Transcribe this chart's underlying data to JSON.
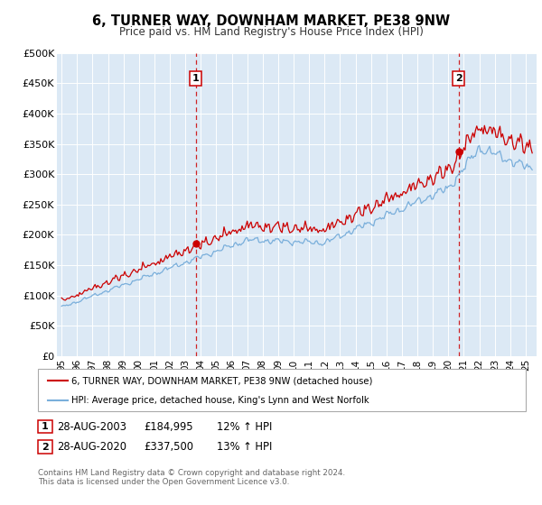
{
  "title": "6, TURNER WAY, DOWNHAM MARKET, PE38 9NW",
  "subtitle": "Price paid vs. HM Land Registry's House Price Index (HPI)",
  "ylim": [
    0,
    500000
  ],
  "yticks": [
    0,
    50000,
    100000,
    150000,
    200000,
    250000,
    300000,
    350000,
    400000,
    450000,
    500000
  ],
  "ytick_labels": [
    "£0",
    "£50K",
    "£100K",
    "£150K",
    "£200K",
    "£250K",
    "£300K",
    "£350K",
    "£400K",
    "£450K",
    "£500K"
  ],
  "background_color": "#dce9f5",
  "red_line_color": "#cc0000",
  "blue_line_color": "#7aafdb",
  "sale1_x": 2003.67,
  "sale1_price": 184995,
  "sale2_x": 2020.67,
  "sale2_price": 337500,
  "legend_line1": "6, TURNER WAY, DOWNHAM MARKET, PE38 9NW (detached house)",
  "legend_line2": "HPI: Average price, detached house, King's Lynn and West Norfolk",
  "footer": "Contains HM Land Registry data © Crown copyright and database right 2024.\nThis data is licensed under the Open Government Licence v3.0.",
  "xstart_year": 1995,
  "xend_year": 2025,
  "xtick_labels": [
    "95",
    "96",
    "97",
    "98",
    "99",
    "00",
    "01",
    "02",
    "03",
    "04",
    "05",
    "06",
    "07",
    "08",
    "09",
    "10",
    "11",
    "12",
    "13",
    "14",
    "15",
    "16",
    "17",
    "18",
    "19",
    "20",
    "21",
    "22",
    "23",
    "24",
    "25"
  ]
}
